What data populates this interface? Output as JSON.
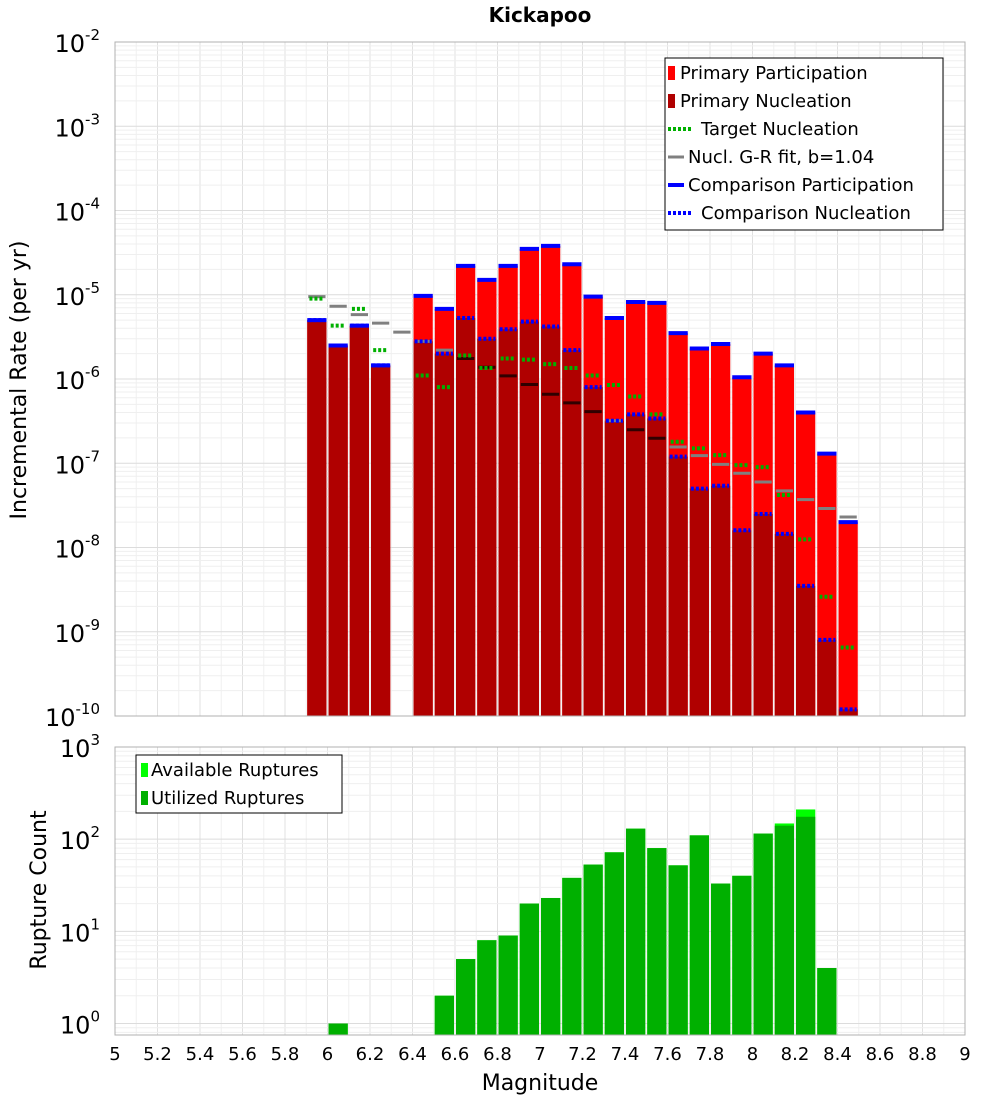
{
  "chart_data": [
    {
      "panel": "top",
      "type": "bar",
      "title": "Kickapoo",
      "xlabel": "",
      "ylabel": "Incremental Rate (per yr)",
      "yscale": "log",
      "ylim": [
        1e-10,
        0.01
      ],
      "xlim": [
        5,
        9
      ],
      "grid": true,
      "legend_position": "top-right",
      "x": [
        5.95,
        6.05,
        6.15,
        6.25,
        6.35,
        6.45,
        6.55,
        6.65,
        6.75,
        6.85,
        6.95,
        7.05,
        7.15,
        7.25,
        7.35,
        7.45,
        7.55,
        7.65,
        7.75,
        7.85,
        7.95,
        8.05,
        8.15,
        8.25,
        8.35,
        8.45
      ],
      "series": [
        {
          "name": "Primary Participation",
          "style": "bar",
          "color": "#ff0000",
          "values": [
            5e-06,
            2.5e-06,
            4.3e-06,
            1.45e-06,
            null,
            9.7e-06,
            6.8e-06,
            2.2e-05,
            1.5e-05,
            2.2e-05,
            3.5e-05,
            3.8e-05,
            2.3e-05,
            9.5e-06,
            5.3e-06,
            8.2e-06,
            8e-06,
            3.5e-06,
            2.3e-06,
            2.6e-06,
            1.05e-06,
            2e-06,
            1.45e-06,
            4e-07,
            1.3e-07,
            2e-08
          ]
        },
        {
          "name": "Primary Nucleation",
          "style": "bar",
          "color": "#b00000",
          "values": [
            5e-06,
            2.5e-06,
            4.3e-06,
            1.45e-06,
            null,
            2.8e-06,
            2e-06,
            5.3e-06,
            3e-06,
            3.9e-06,
            4.8e-06,
            4.2e-06,
            2.2e-06,
            8e-07,
            3.2e-07,
            3.8e-07,
            3.4e-07,
            1.2e-07,
            5e-08,
            5.4e-08,
            1.6e-08,
            2.5e-08,
            1.45e-08,
            3.5e-09,
            8e-10,
            1.2e-10
          ]
        },
        {
          "name": "Target Nucleation",
          "style": "dotted",
          "color": "#00b000",
          "values": [
            9e-06,
            4.3e-06,
            6.8e-06,
            2.2e-06,
            null,
            1.1e-06,
            8e-07,
            1.9e-06,
            1.35e-06,
            1.75e-06,
            1.7e-06,
            1.5e-06,
            1.35e-06,
            1.1e-06,
            8.5e-07,
            6.2e-07,
            3.8e-07,
            1.8e-07,
            1.5e-07,
            1.25e-07,
            9.5e-08,
            9e-08,
            4.2e-08,
            1.25e-08,
            2.6e-09,
            6.5e-10
          ]
        },
        {
          "name": "Nucl. G-R fit, b=1.04",
          "style": "line",
          "color": "#808080",
          "values": [
            9.5e-06,
            7.3e-06,
            5.8e-06,
            4.6e-06,
            3.6e-06,
            2.8e-06,
            2.2e-06,
            1.75e-06,
            1.38e-06,
            1.09e-06,
            8.6e-07,
            6.6e-07,
            5.2e-07,
            4.1e-07,
            3.2e-07,
            2.5e-07,
            1.98e-07,
            1.56e-07,
            1.23e-07,
            9.7e-08,
            7.6e-08,
            6e-08,
            4.7e-08,
            3.7e-08,
            2.9e-08,
            2.3e-08
          ]
        },
        {
          "name": "Comparison Participation",
          "style": "thick-line",
          "color": "#0000ff",
          "values": [
            5e-06,
            2.5e-06,
            4.3e-06,
            1.45e-06,
            null,
            9.7e-06,
            6.8e-06,
            2.2e-05,
            1.5e-05,
            2.2e-05,
            3.5e-05,
            3.8e-05,
            2.3e-05,
            9.5e-06,
            5.3e-06,
            8.2e-06,
            8e-06,
            3.5e-06,
            2.3e-06,
            2.6e-06,
            1.05e-06,
            2e-06,
            1.45e-06,
            4e-07,
            1.3e-07,
            2e-08
          ]
        },
        {
          "name": "Comparison Nucleation",
          "style": "dotted",
          "color": "#0000ff",
          "values": [
            5e-06,
            2.5e-06,
            4.3e-06,
            1.45e-06,
            null,
            2.8e-06,
            2e-06,
            5.3e-06,
            3e-06,
            3.9e-06,
            4.8e-06,
            4.2e-06,
            2.2e-06,
            8e-07,
            3.2e-07,
            3.8e-07,
            3.4e-07,
            1.2e-07,
            5e-08,
            5.4e-08,
            1.6e-08,
            2.5e-08,
            1.45e-08,
            3.5e-09,
            8e-10,
            1.2e-10
          ]
        }
      ],
      "y_ticks": [
        {
          "base": "10",
          "exp": "-10"
        },
        {
          "base": "10",
          "exp": "-9"
        },
        {
          "base": "10",
          "exp": "-8"
        },
        {
          "base": "10",
          "exp": "-7"
        },
        {
          "base": "10",
          "exp": "-6"
        },
        {
          "base": "10",
          "exp": "-5"
        },
        {
          "base": "10",
          "exp": "-4"
        },
        {
          "base": "10",
          "exp": "-3"
        },
        {
          "base": "10",
          "exp": "-2"
        }
      ]
    },
    {
      "panel": "bottom",
      "type": "bar",
      "title": "",
      "xlabel": "Magnitude",
      "ylabel": "Rupture Count",
      "yscale": "log",
      "ylim": [
        0.75,
        1000
      ],
      "xlim": [
        5,
        9
      ],
      "grid": true,
      "legend_position": "top-left",
      "x": [
        6.05,
        6.55,
        6.65,
        6.75,
        6.85,
        6.95,
        7.05,
        7.15,
        7.25,
        7.35,
        7.45,
        7.55,
        7.65,
        7.75,
        7.85,
        7.95,
        8.05,
        8.15,
        8.25,
        8.35
      ],
      "series": [
        {
          "name": "Available Ruptures",
          "style": "bar",
          "color": "#00ff00",
          "values": [
            1,
            2,
            5,
            8,
            9,
            20,
            23,
            38,
            53,
            72,
            130,
            80,
            52,
            110,
            33,
            40,
            115,
            148,
            210,
            4
          ]
        },
        {
          "name": "Utilized Ruptures",
          "style": "bar",
          "color": "#00b000",
          "values": [
            1,
            2,
            5,
            8,
            9,
            20,
            23,
            38,
            53,
            72,
            130,
            80,
            52,
            110,
            33,
            40,
            115,
            140,
            175,
            4
          ]
        }
      ],
      "y_ticks": [
        {
          "base": "10",
          "exp": "0"
        },
        {
          "base": "10",
          "exp": "1"
        },
        {
          "base": "10",
          "exp": "2"
        },
        {
          "base": "10",
          "exp": "3"
        }
      ],
      "x_ticks": [
        "5",
        "5.2",
        "5.4",
        "5.6",
        "5.8",
        "6",
        "6.2",
        "6.4",
        "6.6",
        "6.8",
        "7",
        "7.2",
        "7.4",
        "7.6",
        "7.8",
        "8",
        "8.2",
        "8.4",
        "8.6",
        "8.8",
        "9"
      ]
    }
  ]
}
